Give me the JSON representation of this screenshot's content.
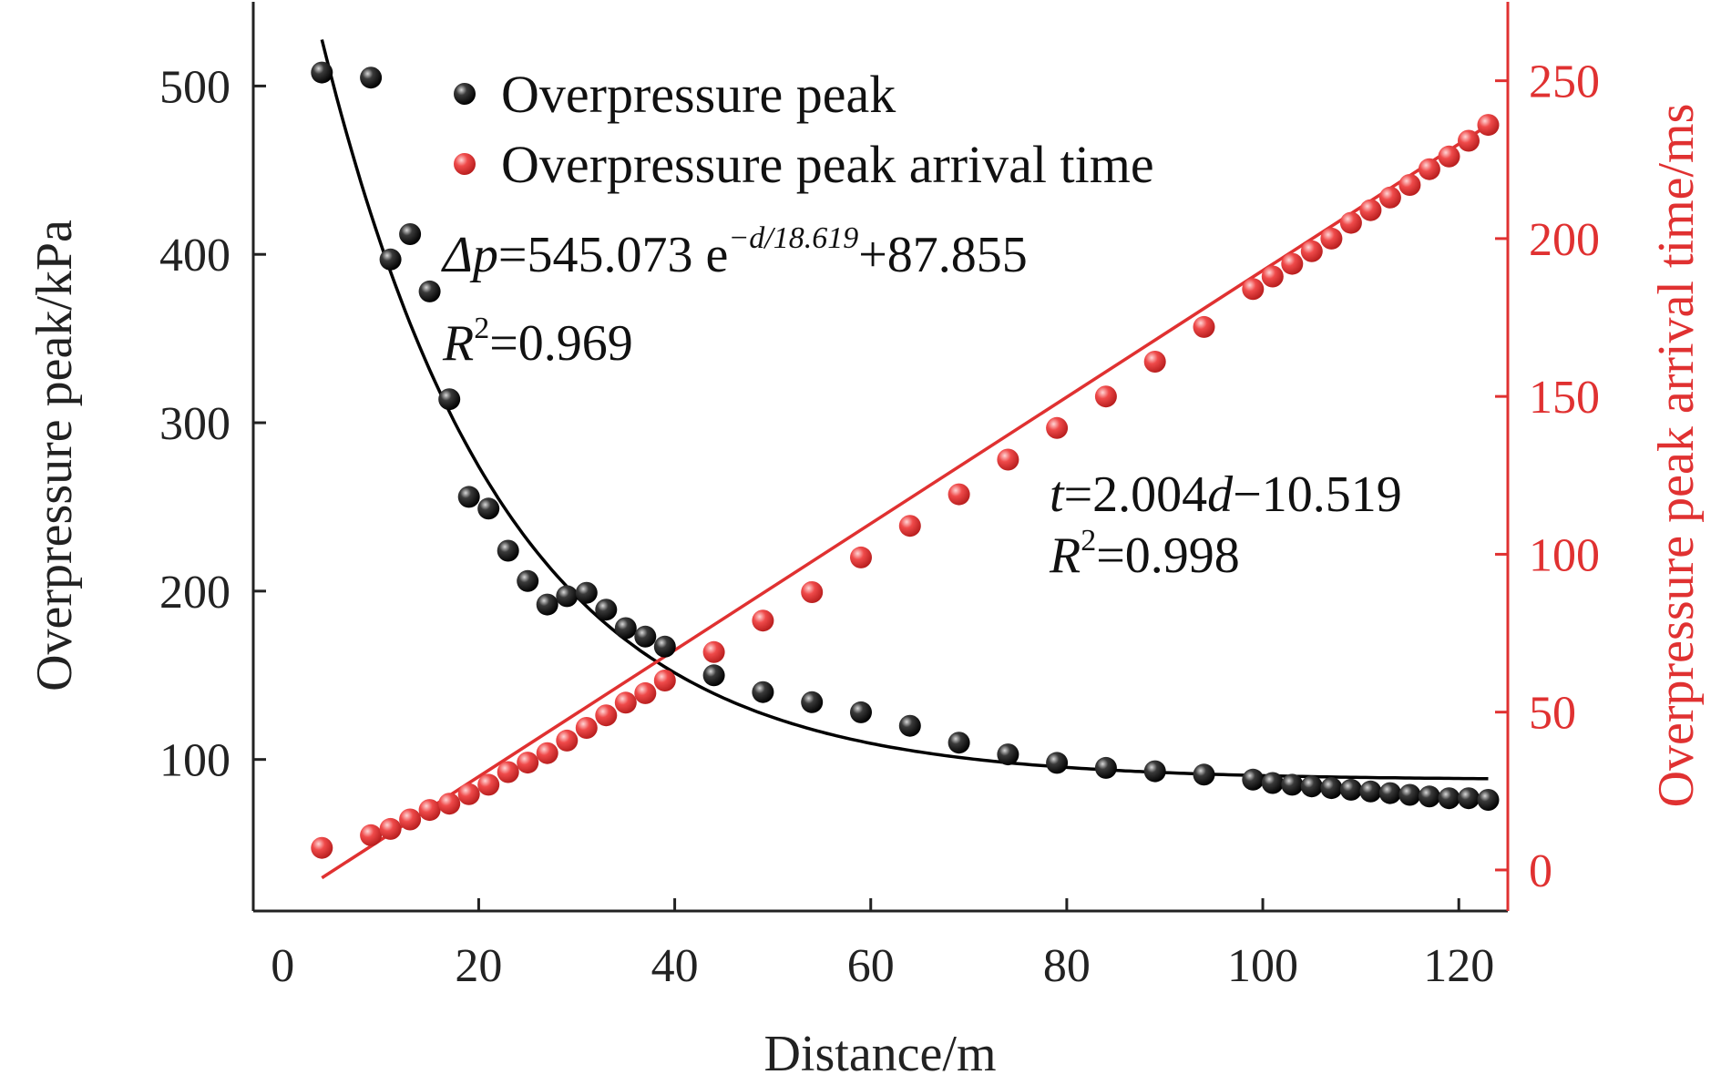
{
  "chart_data": {
    "type": "scatter",
    "xlabel": "Distance/m",
    "ylabel": "Overpressure peak/kPa",
    "y2label": "Overpressure peak arrival time/ms",
    "xlim": [
      -3,
      125
    ],
    "ylim": [
      10,
      550
    ],
    "y2lim": [
      -13,
      275
    ],
    "x_ticks": [
      0,
      20,
      40,
      60,
      80,
      100,
      120
    ],
    "y_ticks": [
      100,
      200,
      300,
      400,
      500
    ],
    "y2_ticks": [
      0,
      50,
      100,
      150,
      200,
      250
    ],
    "grid": false,
    "legend_position": "top-left",
    "colors": {
      "pressure": "#000000",
      "arrival": "#e03131"
    },
    "series": [
      {
        "name": "Overpressure peak",
        "axis": "left",
        "color": "#000000",
        "points": [
          [
            4,
            508
          ],
          [
            9,
            505
          ],
          [
            11,
            397
          ],
          [
            13,
            412
          ],
          [
            15,
            378
          ],
          [
            17,
            314
          ],
          [
            19,
            256
          ],
          [
            21,
            249
          ],
          [
            23,
            224
          ],
          [
            25,
            206
          ],
          [
            27,
            192
          ],
          [
            29,
            197
          ],
          [
            31,
            199
          ],
          [
            33,
            189
          ],
          [
            35,
            178
          ],
          [
            37,
            173
          ],
          [
            39,
            167
          ],
          [
            44,
            150
          ],
          [
            49,
            140
          ],
          [
            54,
            134
          ],
          [
            59,
            128
          ],
          [
            64,
            120
          ],
          [
            69,
            110
          ],
          [
            74,
            103
          ],
          [
            79,
            98
          ],
          [
            84,
            95
          ],
          [
            89,
            93
          ],
          [
            94,
            91
          ],
          [
            99,
            88
          ],
          [
            101,
            86
          ],
          [
            103,
            85
          ],
          [
            105,
            84
          ],
          [
            107,
            83
          ],
          [
            109,
            82
          ],
          [
            111,
            81
          ],
          [
            113,
            80
          ],
          [
            115,
            79
          ],
          [
            117,
            78
          ],
          [
            119,
            77
          ],
          [
            121,
            77
          ],
          [
            123,
            76
          ]
        ]
      },
      {
        "name": "Overpressure peak arrival time",
        "axis": "right",
        "color": "#e03131",
        "points": [
          [
            4,
            7
          ],
          [
            9,
            11
          ],
          [
            11,
            13
          ],
          [
            13,
            16
          ],
          [
            15,
            19
          ],
          [
            17,
            21
          ],
          [
            19,
            24
          ],
          [
            21,
            27
          ],
          [
            23,
            31
          ],
          [
            25,
            34
          ],
          [
            27,
            37
          ],
          [
            29,
            41
          ],
          [
            31,
            45
          ],
          [
            33,
            49
          ],
          [
            35,
            53
          ],
          [
            37,
            56
          ],
          [
            39,
            60
          ],
          [
            44,
            69
          ],
          [
            49,
            79
          ],
          [
            54,
            88
          ],
          [
            59,
            99
          ],
          [
            64,
            109
          ],
          [
            69,
            119
          ],
          [
            74,
            130
          ],
          [
            79,
            140
          ],
          [
            84,
            150
          ],
          [
            89,
            161
          ],
          [
            94,
            172
          ],
          [
            99,
            184
          ],
          [
            101,
            188
          ],
          [
            103,
            192
          ],
          [
            105,
            196
          ],
          [
            107,
            200
          ],
          [
            109,
            205
          ],
          [
            111,
            209
          ],
          [
            113,
            213
          ],
          [
            115,
            217
          ],
          [
            117,
            222
          ],
          [
            119,
            226
          ],
          [
            121,
            231
          ],
          [
            123,
            236
          ]
        ]
      }
    ],
    "fits": [
      {
        "series": "Overpressure peak",
        "model": "exponential",
        "a": 545.073,
        "b": 18.619,
        "c": 87.855,
        "x_range": [
          4,
          123
        ],
        "equation_lhs": "Δp",
        "equation_rhs": "=545.073 e",
        "equation_exp": "−d/18.619",
        "equation_tail": "+87.855",
        "r2_prefix": "R",
        "r2_power": "2",
        "r2_value": "=0.969"
      },
      {
        "series": "Overpressure peak arrival time",
        "model": "linear",
        "slope": 2.004,
        "intercept": -10.519,
        "x_range": [
          4,
          123
        ],
        "equation_lhs": "t",
        "equation_mid": "=2.004",
        "equation_var": "d",
        "equation_tail": "−10.519",
        "r2_prefix": "R",
        "r2_power": "2",
        "r2_value": "=0.998"
      }
    ]
  }
}
